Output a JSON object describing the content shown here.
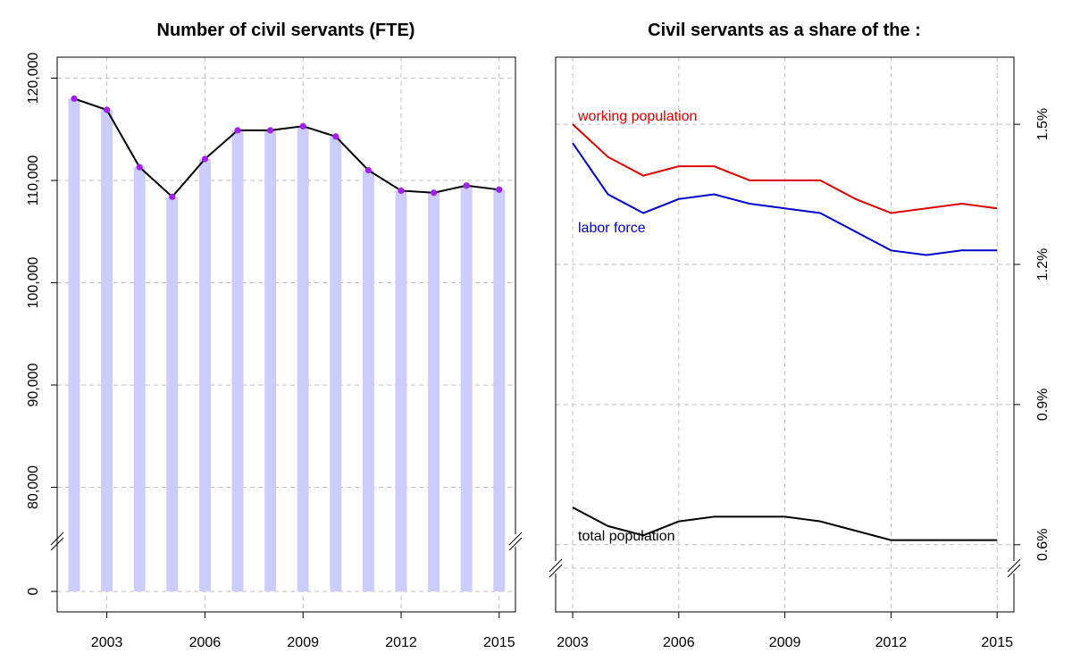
{
  "chart_data": [
    {
      "type": "bar",
      "title": "Number of civil servants (FTE)",
      "x": [
        2002,
        2003,
        2004,
        2005,
        2006,
        2007,
        2008,
        2009,
        2010,
        2011,
        2012,
        2013,
        2014,
        2015
      ],
      "values": [
        118000,
        116900,
        111300,
        108400,
        112100,
        114900,
        114900,
        115300,
        114300,
        111000,
        109000,
        108800,
        109500,
        109100
      ],
      "line_overlay": true,
      "x_ticks": [
        "2003",
        "2006",
        "2009",
        "2012",
        "2015"
      ],
      "y_ticks": [
        "0",
        "80,000",
        "90,000",
        "100,000",
        "110,000",
        "120,000"
      ],
      "axis_break": "between 0 and 80,000",
      "ylim": [
        78000,
        122000
      ],
      "grid": true,
      "colors": {
        "bar": "#ccccff",
        "line": "#000000",
        "point": "#a020f0"
      }
    },
    {
      "type": "line",
      "title": "Civil servants as a share of the :",
      "x": [
        2003,
        2004,
        2005,
        2006,
        2007,
        2008,
        2009,
        2010,
        2011,
        2012,
        2013,
        2014,
        2015
      ],
      "series": [
        {
          "name": "working population",
          "color": "#dd0000",
          "values": [
            1.5,
            1.43,
            1.39,
            1.41,
            1.41,
            1.38,
            1.38,
            1.38,
            1.34,
            1.31,
            1.32,
            1.33,
            1.32
          ]
        },
        {
          "name": "labor force",
          "color": "#0000cc",
          "values": [
            1.46,
            1.35,
            1.31,
            1.34,
            1.35,
            1.33,
            1.32,
            1.31,
            1.27,
            1.23,
            1.22,
            1.23,
            1.23
          ]
        },
        {
          "name": "total population",
          "color": "#000000",
          "values": [
            0.68,
            0.64,
            0.62,
            0.65,
            0.66,
            0.66,
            0.66,
            0.65,
            0.63,
            0.61,
            0.61,
            0.61,
            0.61
          ]
        }
      ],
      "x_ticks": [
        "2003",
        "2006",
        "2009",
        "2012",
        "2015"
      ],
      "y_ticks": [
        "0.6%",
        "0.9%",
        "1.2%",
        "1.5%"
      ],
      "y_tick_values": [
        0.6,
        0.9,
        1.2,
        1.5
      ],
      "y_axis_side": "right",
      "axis_break": "below 0.6%",
      "ylim": [
        0.48,
        1.62
      ],
      "grid": true
    }
  ]
}
